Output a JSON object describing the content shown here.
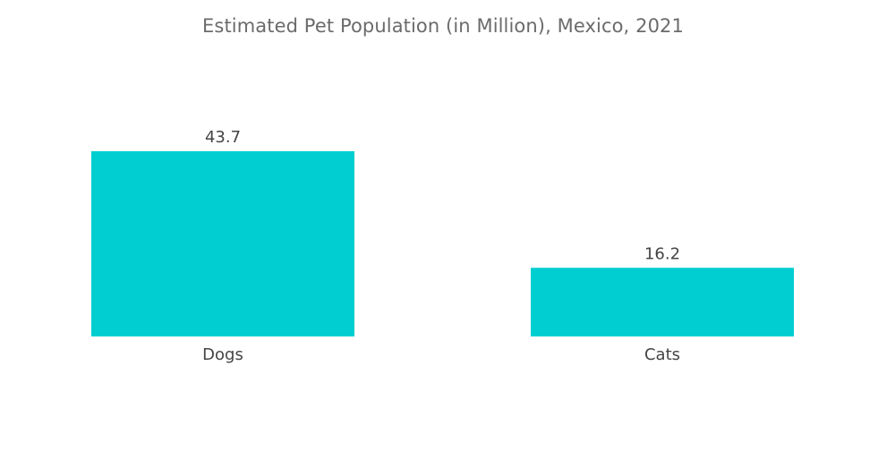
{
  "chart_data": {
    "type": "bar",
    "title": "Estimated Pet Population (in Million), Mexico, 2021",
    "categories": [
      "Dogs",
      "Cats"
    ],
    "values": [
      43.7,
      16.2
    ],
    "data_labels": [
      "43.7",
      "16.2"
    ],
    "xlabel": "",
    "ylabel": "",
    "ylim": [
      0,
      43.7
    ],
    "grid": false,
    "legend": "none",
    "bar_color": "#00CED1"
  }
}
